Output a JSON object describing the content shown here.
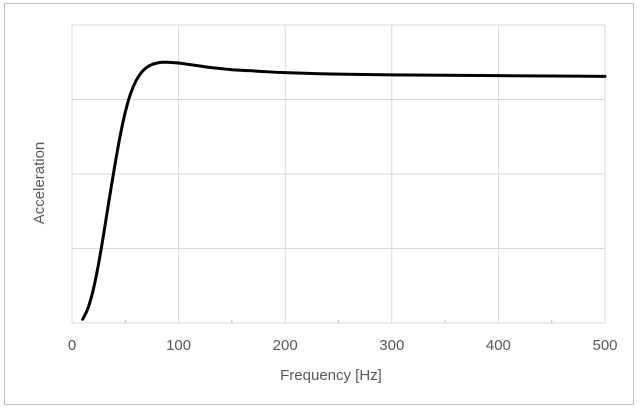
{
  "chart_data": {
    "type": "line",
    "title": "",
    "xlabel": "Frequency  [Hz]",
    "ylabel": "Acceleration",
    "xlim": [
      0,
      500
    ],
    "ylim": [
      0,
      4
    ],
    "x_ticks": [
      "0",
      "100",
      "200",
      "300",
      "400",
      "500"
    ],
    "y_tick_labels_visible": false,
    "grid": true,
    "legend": "none",
    "series": [
      {
        "color": "#000000",
        "x": [
          10,
          15,
          20,
          25,
          30,
          35,
          40,
          45,
          50,
          55,
          60,
          65,
          70,
          75,
          80,
          85,
          90,
          95,
          100,
          110,
          120,
          130,
          140,
          150,
          175,
          200,
          250,
          300,
          350,
          400,
          450,
          500
        ],
        "y": [
          0.05,
          0.2,
          0.45,
          0.8,
          1.22,
          1.67,
          2.1,
          2.5,
          2.83,
          3.08,
          3.25,
          3.36,
          3.43,
          3.47,
          3.49,
          3.5,
          3.5,
          3.495,
          3.49,
          3.47,
          3.45,
          3.43,
          3.415,
          3.4,
          3.38,
          3.36,
          3.34,
          3.33,
          3.325,
          3.32,
          3.315,
          3.31
        ]
      }
    ]
  }
}
